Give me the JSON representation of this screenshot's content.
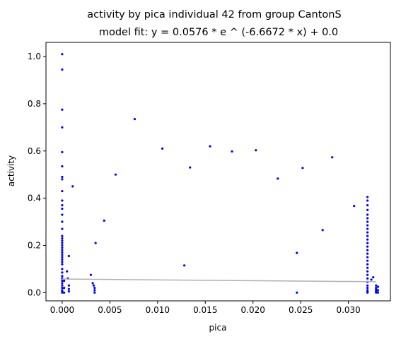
{
  "chart_data": {
    "type": "scatter",
    "title": "activity by pica individual 42 from group CantonS",
    "subtitle": "model fit: y = 0.0576 * e ^ (-6.6672 * x) + 0.0",
    "xlabel": "pica",
    "ylabel": "activity",
    "xlim": [
      -0.0017,
      0.0344
    ],
    "ylim": [
      -0.035,
      1.06
    ],
    "xticks": [
      0.0,
      0.005,
      0.01,
      0.015,
      0.02,
      0.025,
      0.03
    ],
    "xtick_labels": [
      "0.000",
      "0.005",
      "0.010",
      "0.015",
      "0.020",
      "0.025",
      "0.030"
    ],
    "yticks": [
      0.0,
      0.2,
      0.4,
      0.6,
      0.8,
      1.0
    ],
    "ytick_labels": [
      "0.0",
      "0.2",
      "0.4",
      "0.6",
      "0.8",
      "1.0"
    ],
    "grid": false,
    "point_color": "#0000ff",
    "fit_color": "#b0b0b0",
    "fit": {
      "a": 0.0576,
      "b": -6.6672,
      "c": 0.0,
      "x_range": [
        0.0,
        0.0329
      ]
    },
    "points": [
      [
        0.0,
        1.01
      ],
      [
        0.0,
        0.945
      ],
      [
        0.0,
        0.775
      ],
      [
        0.0,
        0.7
      ],
      [
        0.0,
        0.595
      ],
      [
        0.0,
        0.535
      ],
      [
        0.0,
        0.49
      ],
      [
        0.0,
        0.48
      ],
      [
        0.0,
        0.43
      ],
      [
        0.0,
        0.39
      ],
      [
        0.0,
        0.37
      ],
      [
        0.0,
        0.355
      ],
      [
        0.0,
        0.33
      ],
      [
        0.0,
        0.3
      ],
      [
        0.0,
        0.27
      ],
      [
        0.0,
        0.24
      ],
      [
        0.0,
        0.23
      ],
      [
        0.0,
        0.22
      ],
      [
        0.0,
        0.21
      ],
      [
        0.0,
        0.2
      ],
      [
        0.0,
        0.19
      ],
      [
        0.0,
        0.18
      ],
      [
        0.0,
        0.17
      ],
      [
        0.0,
        0.16
      ],
      [
        0.0,
        0.15
      ],
      [
        0.0,
        0.14
      ],
      [
        0.0,
        0.13
      ],
      [
        0.0,
        0.12
      ],
      [
        0.0,
        0.1
      ],
      [
        0.0,
        0.085
      ],
      [
        0.0,
        0.07
      ],
      [
        0.0,
        0.06
      ],
      [
        0.0,
        0.05
      ],
      [
        0.0,
        0.04
      ],
      [
        0.0,
        0.03
      ],
      [
        0.0,
        0.02
      ],
      [
        0.0,
        0.01
      ],
      [
        0.0,
        0.005
      ],
      [
        0.0,
        0.0
      ],
      [
        0.0002,
        0.05
      ],
      [
        0.0002,
        0.02
      ],
      [
        0.0002,
        0.0
      ],
      [
        0.0005,
        0.09
      ],
      [
        0.0006,
        0.06
      ],
      [
        0.0007,
        0.155
      ],
      [
        0.0007,
        0.03
      ],
      [
        0.0007,
        0.015
      ],
      [
        0.0007,
        0.005
      ],
      [
        0.0011,
        0.45
      ],
      [
        0.003,
        0.075
      ],
      [
        0.0032,
        0.04
      ],
      [
        0.0033,
        0.03
      ],
      [
        0.0034,
        0.02
      ],
      [
        0.0034,
        0.01
      ],
      [
        0.0034,
        0.0
      ],
      [
        0.0035,
        0.21
      ],
      [
        0.0044,
        0.305
      ],
      [
        0.0056,
        0.5
      ],
      [
        0.0076,
        0.735
      ],
      [
        0.0105,
        0.61
      ],
      [
        0.0128,
        0.115
      ],
      [
        0.0134,
        0.53
      ],
      [
        0.0155,
        0.62
      ],
      [
        0.0178,
        0.598
      ],
      [
        0.0203,
        0.603
      ],
      [
        0.0226,
        0.483
      ],
      [
        0.0246,
        0.168
      ],
      [
        0.0246,
        0.0
      ],
      [
        0.0252,
        0.528
      ],
      [
        0.0273,
        0.265
      ],
      [
        0.0283,
        0.573
      ],
      [
        0.0306,
        0.367
      ],
      [
        0.032,
        0.405
      ],
      [
        0.032,
        0.39
      ],
      [
        0.032,
        0.37
      ],
      [
        0.032,
        0.35
      ],
      [
        0.032,
        0.33
      ],
      [
        0.032,
        0.315
      ],
      [
        0.032,
        0.3
      ],
      [
        0.032,
        0.285
      ],
      [
        0.032,
        0.27
      ],
      [
        0.032,
        0.255
      ],
      [
        0.032,
        0.24
      ],
      [
        0.032,
        0.225
      ],
      [
        0.032,
        0.21
      ],
      [
        0.032,
        0.195
      ],
      [
        0.032,
        0.18
      ],
      [
        0.032,
        0.165
      ],
      [
        0.032,
        0.15
      ],
      [
        0.032,
        0.135
      ],
      [
        0.032,
        0.12
      ],
      [
        0.032,
        0.105
      ],
      [
        0.032,
        0.09
      ],
      [
        0.032,
        0.075
      ],
      [
        0.032,
        0.06
      ],
      [
        0.032,
        0.045
      ],
      [
        0.032,
        0.03
      ],
      [
        0.032,
        0.02
      ],
      [
        0.032,
        0.01
      ],
      [
        0.032,
        0.005
      ],
      [
        0.032,
        0.0
      ],
      [
        0.0324,
        0.055
      ],
      [
        0.0326,
        0.065
      ],
      [
        0.0329,
        0.03
      ],
      [
        0.0329,
        0.02
      ],
      [
        0.0329,
        0.015
      ],
      [
        0.0329,
        0.01
      ],
      [
        0.0329,
        0.005
      ],
      [
        0.0329,
        0.0
      ],
      [
        0.0331,
        0.025
      ],
      [
        0.0331,
        0.01
      ],
      [
        0.0331,
        0.0
      ]
    ]
  }
}
